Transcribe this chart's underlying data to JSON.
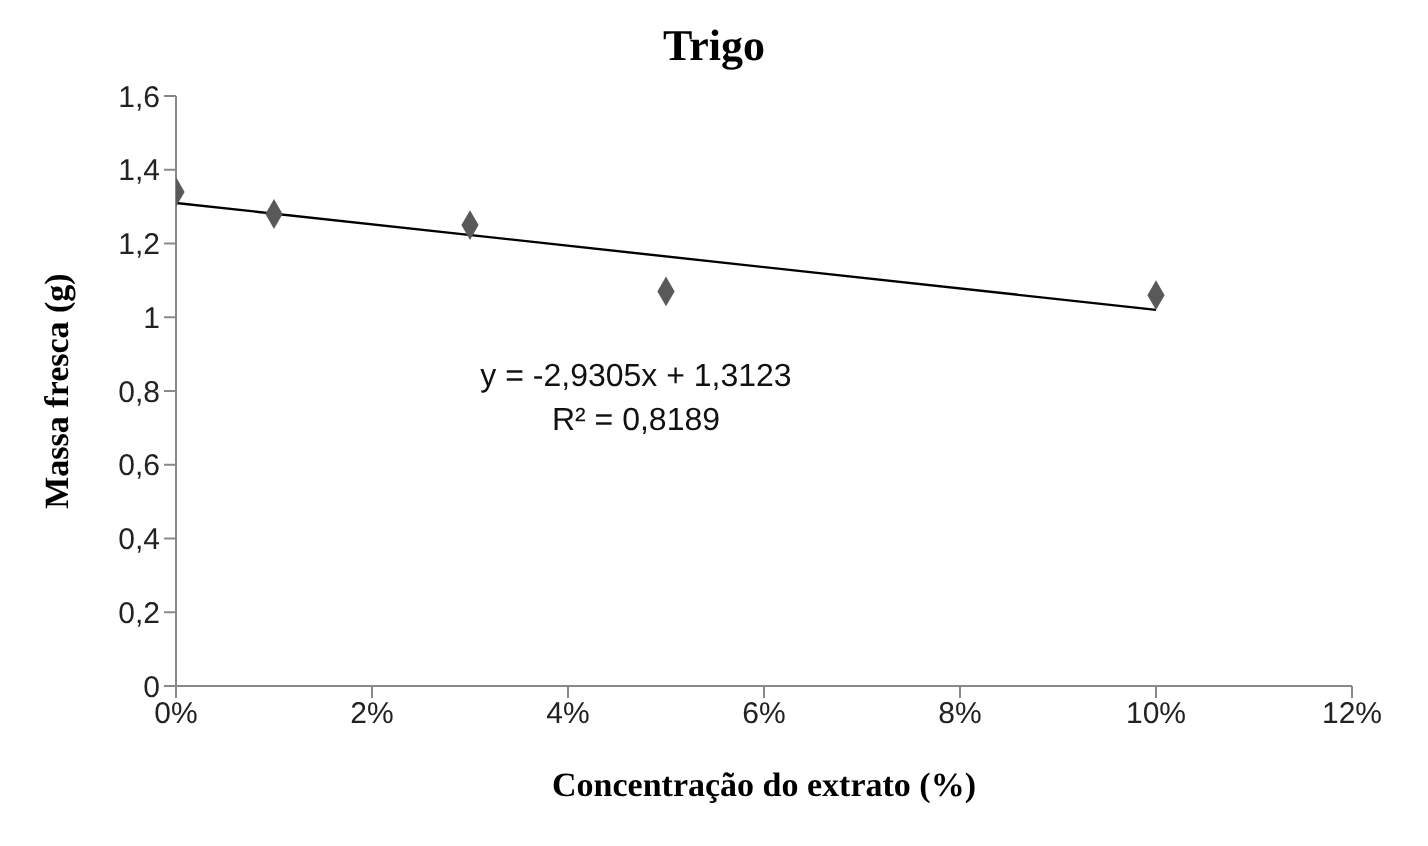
{
  "chart_data": {
    "type": "scatter",
    "title": "Trigo",
    "xlabel": "Concentração do extrato (%)",
    "ylabel": "Massa fresca  (g)",
    "xlim": [
      0,
      0.12
    ],
    "xticks": [
      {
        "value": 0,
        "label": "0%"
      },
      {
        "value": 0.02,
        "label": "2%"
      },
      {
        "value": 0.04,
        "label": "4%"
      },
      {
        "value": 0.06,
        "label": "6%"
      },
      {
        "value": 0.08,
        "label": "8%"
      },
      {
        "value": 0.1,
        "label": "10%"
      },
      {
        "value": 0.12,
        "label": "12%"
      }
    ],
    "ylim": [
      0,
      1.6
    ],
    "yticks": [
      0,
      {
        "value": 0.2,
        "label": "0,2"
      },
      {
        "value": 0.4,
        "label": "0,4"
      },
      {
        "value": 0.6,
        "label": "0,6"
      },
      {
        "value": 0.8,
        "label": "0,8"
      },
      1,
      {
        "value": 1.2,
        "label": "1,2"
      },
      {
        "value": 1.4,
        "label": "1,4"
      },
      {
        "value": 1.6,
        "label": "1,6"
      }
    ],
    "series": [
      {
        "marker": "diamond",
        "color": "#595959",
        "x": [
          0,
          0.01,
          0.03,
          0.05,
          0.1
        ],
        "values": [
          1.34,
          1.28,
          1.25,
          1.07,
          1.06
        ]
      },
      {
        "type": "line",
        "color": "#000000",
        "x": [
          0,
          0.1
        ],
        "values": [
          1.31,
          1.02
        ]
      }
    ],
    "annotations": [
      "y = -2,9305x + 1,3123",
      "R² = 0,8189"
    ]
  }
}
